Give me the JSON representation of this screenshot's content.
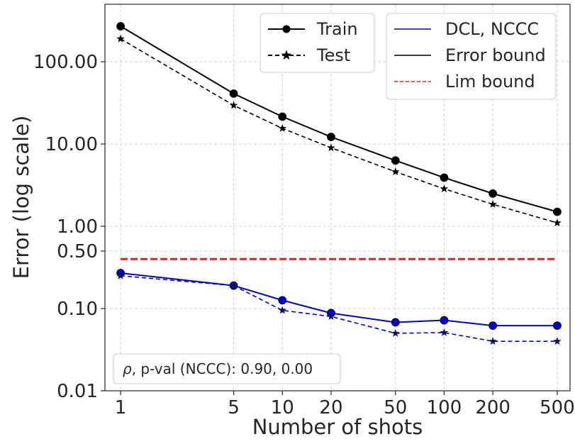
{
  "chart_data": {
    "type": "line",
    "title": "",
    "xlabel": "Number of shots",
    "ylabel": "Error (log scale)",
    "xscale": "log",
    "yscale": "log",
    "x": [
      1,
      5,
      10,
      20,
      50,
      100,
      200,
      500
    ],
    "x_tick_labels": [
      "1",
      "5",
      "10",
      "20",
      "50",
      "100",
      "200",
      "500"
    ],
    "y_ticks": [
      0.01,
      0.1,
      0.5,
      1,
      10,
      100
    ],
    "y_tick_labels": [
      "0.01",
      "0.10",
      "0.50",
      "1.00",
      "10.00",
      "100.00"
    ],
    "xlim": [
      0.8,
      600
    ],
    "ylim": [
      0.01,
      500
    ],
    "grid": true,
    "series": [
      {
        "name": "Error bound (Train)",
        "color": "#000000",
        "marker": "circle",
        "dashed": false,
        "values": [
          270,
          41,
          21.5,
          12.2,
          6.3,
          3.9,
          2.5,
          1.5
        ]
      },
      {
        "name": "Error bound (Test)",
        "color": "#000000",
        "marker": "star",
        "dashed": true,
        "values": [
          190,
          29.5,
          15.5,
          9.0,
          4.6,
          2.85,
          1.85,
          1.1
        ]
      },
      {
        "name": "DCL, NCCC (Train)",
        "color": "#0000cc",
        "marker": "circle",
        "dashed": false,
        "values": [
          0.27,
          0.19,
          0.126,
          0.088,
          0.068,
          0.072,
          0.062,
          0.062
        ]
      },
      {
        "name": "DCL, NCCC (Test)",
        "color": "#0000cc",
        "marker": "star",
        "dashed": true,
        "values": [
          0.25,
          0.19,
          0.095,
          0.08,
          0.05,
          0.051,
          0.04,
          0.04
        ]
      }
    ],
    "lim_bound": {
      "value": 0.4,
      "color": "#dd2222"
    },
    "legend_markers": {
      "placement": "top-center",
      "entries": [
        {
          "label": "Train",
          "marker": "circle",
          "dashed": false
        },
        {
          "label": "Test",
          "marker": "star",
          "dashed": true
        }
      ]
    },
    "legend_lines": {
      "placement": "top-right",
      "entries": [
        {
          "label": "DCL, NCCC",
          "color": "#0000cc",
          "dashed": false
        },
        {
          "label": "Error bound",
          "color": "#000000",
          "dashed": false
        },
        {
          "label": "Lim bound",
          "color": "#dd2222",
          "dashed": true
        }
      ]
    },
    "annotation": {
      "rho_symbol": "ρ",
      "text": ", p-val (NCCC):  0.90, 0.00",
      "placement": "bottom-left"
    }
  }
}
